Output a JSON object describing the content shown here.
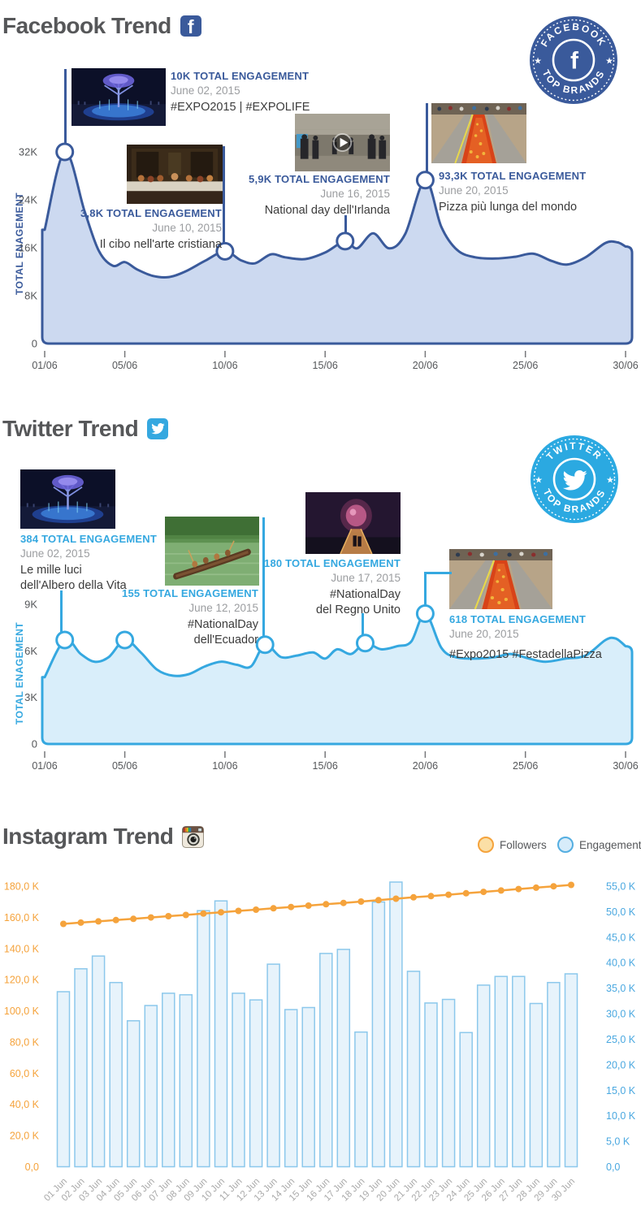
{
  "colors": {
    "facebook_blue": "#3a5a9b",
    "facebook_fill": "#ccd9f0",
    "twitter_blue": "#35a8e0",
    "twitter_fill": "#d9eefa",
    "followers_orange": "#f5a33c",
    "engagement_bar_fill": "#e7f3fb",
    "engagement_bar_stroke": "#8cc8ec",
    "axis_text": "#55575a",
    "date_gray": "#9b9da0",
    "caption_dark": "#3b3b3b",
    "instagram_x_labels": "#a9a9a9",
    "right_axis_blue": "#4aa8e0"
  },
  "facebook": {
    "title": "Facebook Trend",
    "icon_letter": "f",
    "badge": {
      "line1": "FACEBOOK",
      "line2": "TOP BRANDS",
      "star": "★",
      "center_letter": "f"
    },
    "y_axis_label": "TOTAL ENAGEMENT",
    "annotations": [
      {
        "photo": "albero-della-vita-fountain",
        "value": "10K TOTAL ENGAGEMENT",
        "date": "June 02, 2015",
        "caption": "#EXPO2015 | #EXPOLIFE"
      },
      {
        "photo": "ultima-cena-painting",
        "value": "3,8K TOTAL ENGAGEMENT",
        "date": "June 10, 2015",
        "caption": "Il cibo nell'arte cristiana"
      },
      {
        "photo": "video-still",
        "value": "5,9K TOTAL ENGAGEMENT",
        "date": "June 16, 2015",
        "caption": "National day dell'Irlanda"
      },
      {
        "photo": "longest-pizza",
        "value": "93,3K TOTAL ENGAGEMENT",
        "date": "June 20, 2015",
        "caption": "Pizza più lunga del mondo"
      }
    ]
  },
  "twitter": {
    "title": "Twitter Trend",
    "badge": {
      "line1": "TWITTER",
      "line2": "TOP BRANDS",
      "star": "★"
    },
    "y_axis_label": "TOTAL ENAGEMENT",
    "annotations": [
      {
        "photo": "albero-della-vita-fountain",
        "value": "384 TOTAL ENGAGEMENT",
        "date": "June 02, 2015",
        "caption": "Le mille luci\ndell'Albero della Vita"
      },
      {
        "photo": "canoe-river",
        "value": "155 TOTAL ENGAGEMENT",
        "date": "June 12, 2015",
        "caption": "#NationalDay\ndell'Ecuador"
      },
      {
        "photo": "uk-pavilion-night",
        "value": "180 TOTAL ENGAGEMENT",
        "date": "June 17, 2015",
        "caption": "#NationalDay\ndel Regno Unito"
      },
      {
        "photo": "longest-pizza",
        "value": "618 TOTAL ENGAGEMENT",
        "date": "June 20, 2015",
        "caption": "#Expo2015 #FestadellaPizza"
      }
    ]
  },
  "instagram": {
    "title": "Instagram Trend",
    "legend": [
      {
        "label": "Followers"
      },
      {
        "label": "Engagement"
      }
    ]
  },
  "chart_data": [
    {
      "type": "area",
      "name": "facebook-trend",
      "title": "Facebook Trend",
      "ylabel": "TOTAL ENAGEMENT",
      "unit": "thousands of engagements",
      "ylim": [
        0,
        36
      ],
      "y_ticks": [
        {
          "value": 32,
          "label": "32K"
        },
        {
          "value": 24,
          "label": "24K"
        },
        {
          "value": 16,
          "label": "16K"
        },
        {
          "value": 8,
          "label": "8K"
        },
        {
          "value": 0,
          "label": "0"
        }
      ],
      "x_ticks": [
        {
          "day": 1,
          "label": "01/06"
        },
        {
          "day": 5,
          "label": "05/06"
        },
        {
          "day": 10,
          "label": "10/06"
        },
        {
          "day": 15,
          "label": "15/06"
        },
        {
          "day": 20,
          "label": "20/06"
        },
        {
          "day": 25,
          "label": "25/06"
        },
        {
          "day": 30,
          "label": "30/06"
        }
      ],
      "points": [
        [
          1,
          19
        ],
        [
          2,
          32
        ],
        [
          3,
          22
        ],
        [
          3.7,
          15.5
        ],
        [
          4.4,
          13
        ],
        [
          5,
          13.6
        ],
        [
          5.6,
          12.4
        ],
        [
          6.4,
          11.3
        ],
        [
          7.2,
          11.1
        ],
        [
          8,
          12
        ],
        [
          9,
          13.8
        ],
        [
          10,
          15.4
        ],
        [
          10.8,
          13.9
        ],
        [
          11.5,
          13.4
        ],
        [
          12.3,
          14.9
        ],
        [
          13,
          14.4
        ],
        [
          14,
          14.1
        ],
        [
          15,
          15.2
        ],
        [
          16,
          17.1
        ],
        [
          16.6,
          15.9
        ],
        [
          17.4,
          18.4
        ],
        [
          18.2,
          15.9
        ],
        [
          19,
          18.3
        ],
        [
          20,
          27.3
        ],
        [
          20.8,
          19.5
        ],
        [
          21.6,
          15.6
        ],
        [
          22.5,
          14.4
        ],
        [
          23.5,
          14.2
        ],
        [
          24.5,
          14.5
        ],
        [
          25.4,
          15.0
        ],
        [
          26.3,
          13.8
        ],
        [
          27.1,
          13.2
        ],
        [
          28,
          14.4
        ],
        [
          29,
          16.8
        ],
        [
          29.6,
          16.9
        ],
        [
          30,
          16.2
        ]
      ],
      "markers": [
        {
          "day": 2,
          "value": 32,
          "annotation": "10K TOTAL ENGAGEMENT"
        },
        {
          "day": 10,
          "value": 15.4,
          "annotation": "3,8K TOTAL ENGAGEMENT"
        },
        {
          "day": 16,
          "value": 17.1,
          "annotation": "5,9K TOTAL ENGAGEMENT"
        },
        {
          "day": 20,
          "value": 27.3,
          "annotation": "93,3K TOTAL ENGAGEMENT"
        }
      ]
    },
    {
      "type": "area",
      "name": "twitter-trend",
      "title": "Twitter Trend",
      "ylabel": "TOTAL ENAGEMENT",
      "unit": "thousands of engagements",
      "ylim": [
        0,
        10.5
      ],
      "y_ticks": [
        {
          "value": 9,
          "label": "9K"
        },
        {
          "value": 6,
          "label": "6K"
        },
        {
          "value": 3,
          "label": "3K"
        },
        {
          "value": 0,
          "label": "0"
        }
      ],
      "x_ticks": [
        {
          "day": 1,
          "label": "01/06"
        },
        {
          "day": 5,
          "label": "05/06"
        },
        {
          "day": 10,
          "label": "10/06"
        },
        {
          "day": 15,
          "label": "15/06"
        },
        {
          "day": 20,
          "label": "20/06"
        },
        {
          "day": 25,
          "label": "25/06"
        },
        {
          "day": 30,
          "label": "30/06"
        }
      ],
      "points": [
        [
          1,
          4.3
        ],
        [
          2,
          6.7
        ],
        [
          2.8,
          5.8
        ],
        [
          3.5,
          5.3
        ],
        [
          4.2,
          5.6
        ],
        [
          5,
          6.7
        ],
        [
          5.8,
          5.9
        ],
        [
          6.6,
          4.8
        ],
        [
          7.4,
          4.4
        ],
        [
          8.2,
          4.5
        ],
        [
          9,
          5.0
        ],
        [
          9.8,
          5.3
        ],
        [
          10.6,
          5.1
        ],
        [
          11.3,
          5.0
        ],
        [
          12,
          6.4
        ],
        [
          12.8,
          5.6
        ],
        [
          13.6,
          5.7
        ],
        [
          14.4,
          5.9
        ],
        [
          15,
          5.5
        ],
        [
          15.6,
          6.1
        ],
        [
          16.3,
          5.8
        ],
        [
          17,
          6.5
        ],
        [
          17.8,
          6.1
        ],
        [
          18.6,
          6.3
        ],
        [
          19.3,
          6.6
        ],
        [
          20,
          8.4
        ],
        [
          20.8,
          6.2
        ],
        [
          21.5,
          5.6
        ],
        [
          22.5,
          5.5
        ],
        [
          23.5,
          5.6
        ],
        [
          24.3,
          5.8
        ],
        [
          25.2,
          5.5
        ],
        [
          26,
          5.3
        ],
        [
          27,
          5.5
        ],
        [
          28,
          5.7
        ],
        [
          29,
          6.7
        ],
        [
          29.5,
          6.8
        ],
        [
          30,
          6.3
        ]
      ],
      "markers": [
        {
          "day": 2,
          "value": 6.7,
          "annotation": "384 TOTAL ENGAGEMENT"
        },
        {
          "day": 5,
          "value": 6.7,
          "annotation": ""
        },
        {
          "day": 12,
          "value": 6.4,
          "annotation": "155 TOTAL ENGAGEMENT"
        },
        {
          "day": 17,
          "value": 6.5,
          "annotation": "180 TOTAL ENGAGEMENT"
        },
        {
          "day": 20,
          "value": 8.4,
          "annotation": "618 TOTAL ENGAGEMENT"
        }
      ]
    },
    {
      "type": "bar+line",
      "name": "instagram-trend",
      "title": "Instagram Trend",
      "categories": [
        "01 Jun",
        "02 Jun",
        "03 Jun",
        "04 Jun",
        "05 Jun",
        "06 Jun",
        "07 Jun",
        "08 Jun",
        "09 Jun",
        "10 Jun",
        "11 Jun",
        "12 Jun",
        "13 Jun",
        "14 Jun",
        "15 Jun",
        "16 Jun",
        "17 Jun",
        "18 Jun",
        "19 Jun",
        "20 Jun",
        "21 Jun",
        "22 Jun",
        "23 Jun",
        "24 Jun",
        "25 Jun",
        "26 Jun",
        "27 Jun",
        "28 Jun",
        "29 Jun",
        "30 Jun"
      ],
      "series": [
        {
          "name": "Engagement",
          "type": "bar",
          "axis": "right",
          "unit": "K",
          "values": [
            34.3,
            38.8,
            41.3,
            36.1,
            28.6,
            31.6,
            34.0,
            33.7,
            50.2,
            52.1,
            34.0,
            32.7,
            39.7,
            30.8,
            31.2,
            41.8,
            42.6,
            26.4,
            51.9,
            55.8,
            38.3,
            32.1,
            32.8,
            26.3,
            35.6,
            37.3,
            37.3,
            32.0,
            36.1,
            37.8
          ]
        },
        {
          "name": "Followers",
          "type": "line",
          "axis": "left",
          "unit": "K",
          "values": [
            155.8,
            156.6,
            157.4,
            158.2,
            159.0,
            159.9,
            160.7,
            161.5,
            162.4,
            163.2,
            164.1,
            164.9,
            165.8,
            166.6,
            167.5,
            168.4,
            169.2,
            170.1,
            171.0,
            171.9,
            172.8,
            173.6,
            174.5,
            175.4,
            176.3,
            177.2,
            178.1,
            179.0,
            179.9,
            180.8
          ]
        }
      ],
      "left_axis": {
        "range": [
          0,
          180
        ],
        "ticks": [
          {
            "value": 180,
            "label": "180,0 K"
          },
          {
            "value": 160,
            "label": "160,0 K"
          },
          {
            "value": 140,
            "label": "140,0 K"
          },
          {
            "value": 120,
            "label": "120,0 K"
          },
          {
            "value": 100,
            "label": "100,0 K"
          },
          {
            "value": 80,
            "label": "80,0 K"
          },
          {
            "value": 60,
            "label": "60,0 K"
          },
          {
            "value": 40,
            "label": "40,0 K"
          },
          {
            "value": 20,
            "label": "20,0 K"
          },
          {
            "value": 0,
            "label": "0,0"
          }
        ]
      },
      "right_axis": {
        "range": [
          0,
          55
        ],
        "ticks": [
          {
            "value": 55,
            "label": "55,0 K"
          },
          {
            "value": 50,
            "label": "50,0 K"
          },
          {
            "value": 45,
            "label": "45,0 K"
          },
          {
            "value": 40,
            "label": "40,0 K"
          },
          {
            "value": 35,
            "label": "35,0 K"
          },
          {
            "value": 30,
            "label": "30,0 K"
          },
          {
            "value": 25,
            "label": "25,0 K"
          },
          {
            "value": 20,
            "label": "20,0 K"
          },
          {
            "value": 15,
            "label": "15,0 K"
          },
          {
            "value": 10,
            "label": "10,0 K"
          },
          {
            "value": 5,
            "label": "5,0 K"
          },
          {
            "value": 0,
            "label": "0,0"
          }
        ]
      }
    }
  ]
}
